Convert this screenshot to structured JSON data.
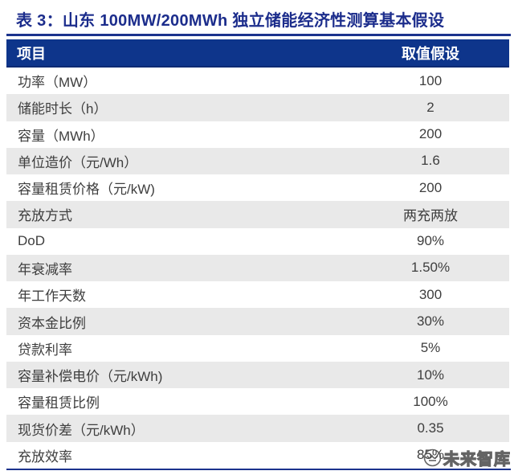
{
  "title": "表 3：山东 100MW/200MWh 独立储能经济性测算基本假设",
  "table": {
    "columns": [
      "项目",
      "取值假设"
    ],
    "rows": [
      {
        "label": "功率（MW）",
        "value": "100"
      },
      {
        "label": "储能时长（h）",
        "value": "2"
      },
      {
        "label": "容量（MWh）",
        "value": "200"
      },
      {
        "label": "单位造价（元/Wh）",
        "value": "1.6"
      },
      {
        "label": "容量租赁价格（元/kW)",
        "value": "200"
      },
      {
        "label": "充放方式",
        "value": "两充两放"
      },
      {
        "label": "DoD",
        "value": "90%"
      },
      {
        "label": "年衰减率",
        "value": "1.50%"
      },
      {
        "label": "年工作天数",
        "value": "300"
      },
      {
        "label": "资本金比例",
        "value": "30%"
      },
      {
        "label": "贷款利率",
        "value": "5%"
      },
      {
        "label": "容量补偿电价（元/kWh)",
        "value": "10%"
      },
      {
        "label": "容量租赁比例",
        "value": "100%"
      },
      {
        "label": "现货价差（元/kWh）",
        "value": "0.35"
      },
      {
        "label": "充放效率",
        "value": "85%"
      }
    ]
  },
  "watermark": {
    "text": "未来智库",
    "logo": "weilai-zhiku-circle-logo"
  },
  "colors": {
    "header_bg": "#0e358b",
    "title_text": "#1c2d8c",
    "rule": "#1c338d",
    "alt_row_bg": "#e9e9e9",
    "body_text": "#3e3e3e",
    "watermark": "#4a4a4a"
  }
}
